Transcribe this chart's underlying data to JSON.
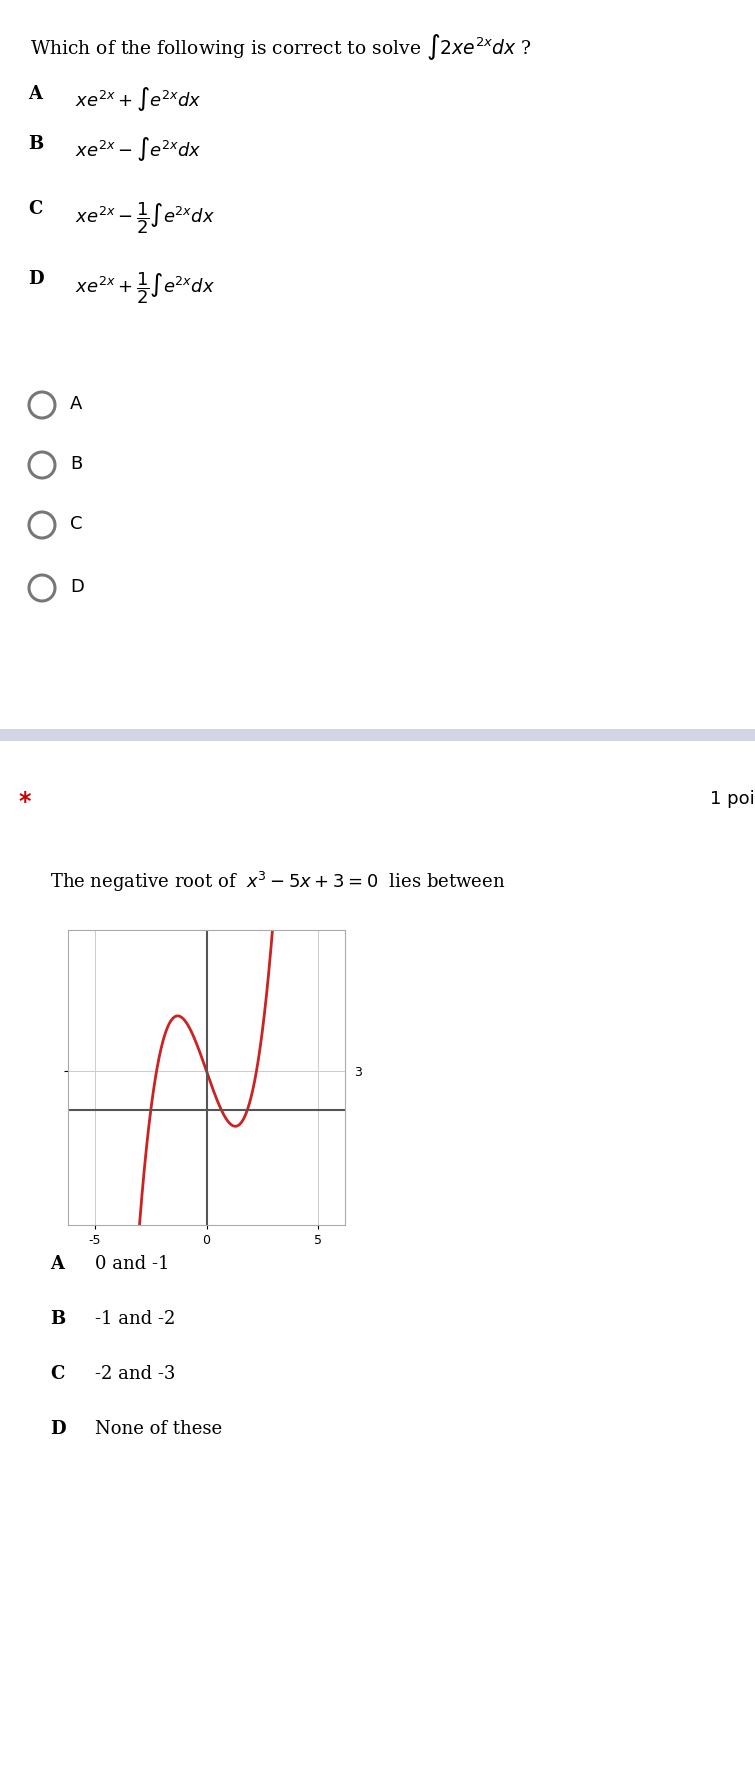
{
  "bg_color": "#ffffff",
  "separator_color": "#d4d4e8",
  "q1_title_plain": "Which of the following is correct to solve ",
  "q1_title_math": "$\\int 2xe^{2x}dx$",
  "q1_title_end": " ?",
  "q1_options": [
    [
      "A",
      "$xe^{2x}+\\int e^{2x}dx$"
    ],
    [
      "B",
      "$xe^{2x}-\\int e^{2x}dx$"
    ],
    [
      "C",
      "$xe^{2x}-\\dfrac{1}{2}\\int e^{2x}dx$"
    ],
    [
      "D",
      "$xe^{2x}+\\dfrac{1}{2}\\int e^{2x}dx$"
    ]
  ],
  "radio_labels": [
    "A",
    "B",
    "C",
    "D"
  ],
  "star_color": "#cc0000",
  "points_text": "1 poi",
  "q2_title": "The negative root of  $x^3-5x+3=0$  lies between",
  "q2_options": [
    [
      "A",
      "0 and -1"
    ],
    [
      "B",
      "-1 and -2"
    ],
    [
      "C",
      "-2 and -3"
    ],
    [
      "D",
      "None of these"
    ]
  ],
  "curve_color": "#cc2222",
  "curve_linewidth": 2.0,
  "grid_color": "#cccccc",
  "axis_color": "#555555",
  "radio_circle_color": "#777777",
  "title_fontsize": 13.5,
  "option_label_fontsize": 13,
  "option_text_fontsize": 13,
  "radio_label_fontsize": 13,
  "q2_title_fontsize": 13,
  "q2_option_fontsize": 13,
  "points_fontsize": 13
}
